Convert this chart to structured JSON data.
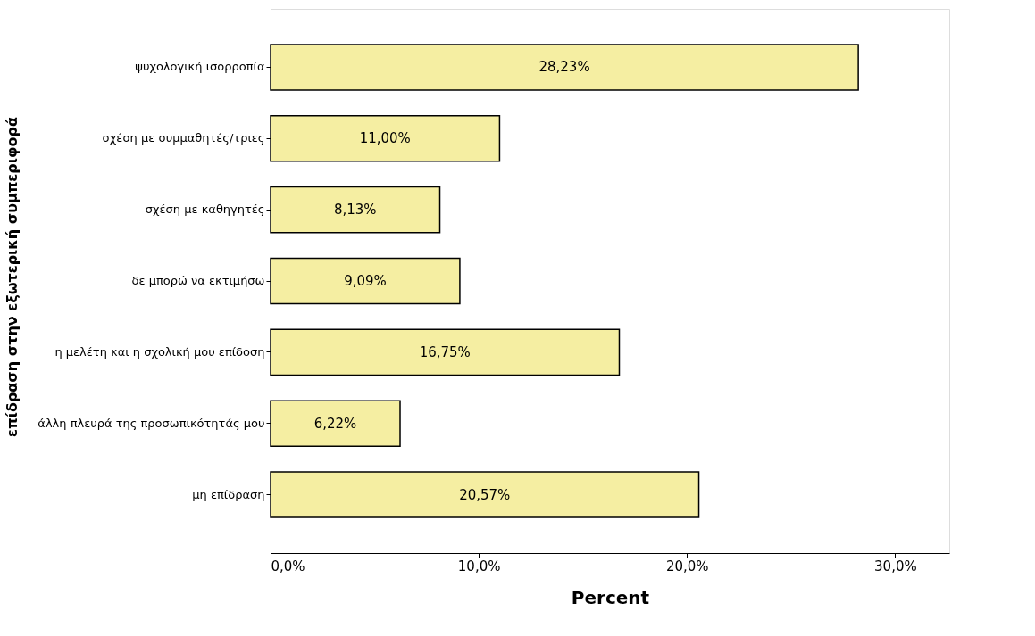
{
  "chart_data": {
    "type": "bar",
    "orientation": "horizontal",
    "xlabel": "Percent",
    "ylabel": "επίδραση στην εξωτερική συμπεριφορά",
    "categories": [
      "ψυχολογική ισορροπία",
      "σχέση με συμμαθητές/τριες",
      "σχέση με καθηγητές",
      "δε μπορώ να εκτιμήσω",
      "η μελέτη και η σχολική μου επίδοση",
      "άλλη πλευρά της  προσωπικότητάς μου",
      "μη επίδραση"
    ],
    "values": [
      28.23,
      11.0,
      8.13,
      9.09,
      16.75,
      6.22,
      20.57
    ],
    "value_labels": [
      "28,23%",
      "11,00%",
      "8,13%",
      "9,09%",
      "16,75%",
      "6,22%",
      "20,57%"
    ],
    "color": "#f5eea2",
    "xlim": [
      0,
      32.6
    ],
    "xticks": [
      {
        "value": 0,
        "label": "0,0%"
      },
      {
        "value": 10,
        "label": "10,0%"
      },
      {
        "value": 20,
        "label": "20,0%"
      },
      {
        "value": 30,
        "label": "30,0%"
      }
    ],
    "grid": false
  }
}
